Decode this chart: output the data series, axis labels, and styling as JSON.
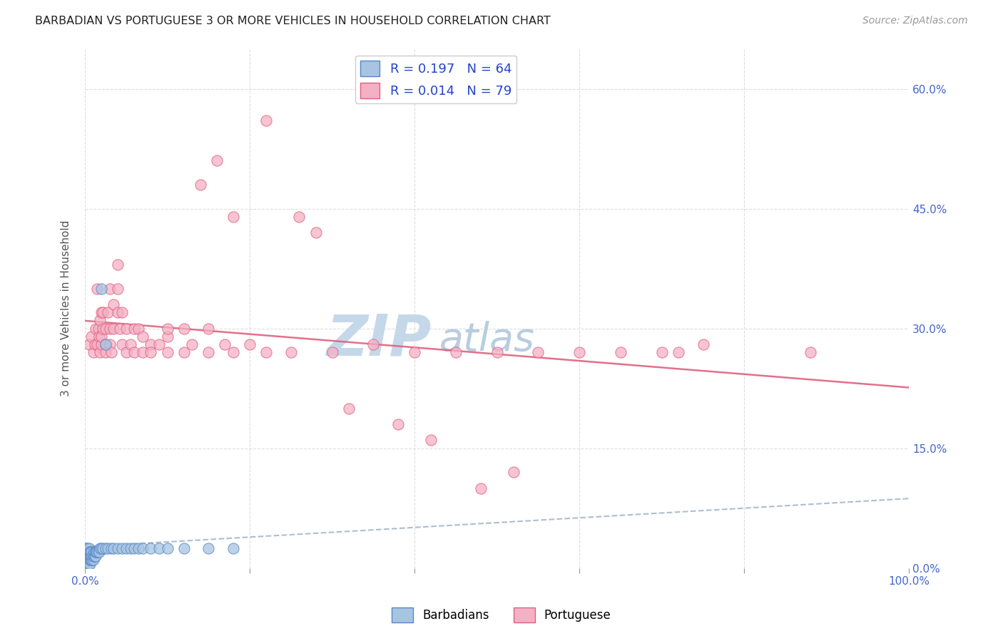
{
  "title": "BARBADIAN VS PORTUGUESE 3 OR MORE VEHICLES IN HOUSEHOLD CORRELATION CHART",
  "source": "Source: ZipAtlas.com",
  "ylabel_label": "3 or more Vehicles in Household",
  "xlim": [
    0.0,
    1.0
  ],
  "ylim": [
    0.0,
    0.65
  ],
  "barbadian_color": "#a8c4e0",
  "barbadian_edge_color": "#5588cc",
  "portuguese_color": "#f4b0c4",
  "portuguese_edge_color": "#e06080",
  "trendline_barbadian_color": "#8ab0d0",
  "trendline_portuguese_color": "#e06080",
  "watermark_color": "#cddded",
  "R_barbadian": 0.197,
  "N_barbadian": 64,
  "R_portuguese": 0.014,
  "N_portuguese": 79,
  "tick_color": "#4466cc",
  "grid_color": "#dddddd",
  "barbadian_x": [
    0.001,
    0.001,
    0.002,
    0.002,
    0.002,
    0.003,
    0.003,
    0.003,
    0.003,
    0.004,
    0.004,
    0.004,
    0.004,
    0.005,
    0.005,
    0.005,
    0.005,
    0.005,
    0.006,
    0.006,
    0.006,
    0.006,
    0.007,
    0.007,
    0.007,
    0.008,
    0.008,
    0.008,
    0.009,
    0.009,
    0.01,
    0.01,
    0.01,
    0.011,
    0.012,
    0.012,
    0.013,
    0.013,
    0.014,
    0.015,
    0.016,
    0.017,
    0.018,
    0.02,
    0.022,
    0.025,
    0.028,
    0.032,
    0.035,
    0.04,
    0.045,
    0.05,
    0.055,
    0.06,
    0.065,
    0.07,
    0.08,
    0.09,
    0.1,
    0.12,
    0.15,
    0.18,
    0.02,
    0.025
  ],
  "barbadian_y": [
    0.02,
    0.025,
    0.015,
    0.02,
    0.025,
    0.01,
    0.015,
    0.02,
    0.025,
    0.005,
    0.01,
    0.015,
    0.02,
    0.005,
    0.01,
    0.015,
    0.02,
    0.025,
    0.005,
    0.01,
    0.015,
    0.02,
    0.01,
    0.015,
    0.02,
    0.01,
    0.015,
    0.02,
    0.01,
    0.015,
    0.01,
    0.015,
    0.02,
    0.015,
    0.015,
    0.02,
    0.015,
    0.02,
    0.02,
    0.02,
    0.02,
    0.02,
    0.025,
    0.025,
    0.025,
    0.025,
    0.025,
    0.025,
    0.025,
    0.025,
    0.025,
    0.025,
    0.025,
    0.025,
    0.025,
    0.025,
    0.025,
    0.025,
    0.025,
    0.025,
    0.025,
    0.025,
    0.35,
    0.28
  ],
  "portuguese_x": [
    0.005,
    0.008,
    0.01,
    0.012,
    0.013,
    0.015,
    0.015,
    0.016,
    0.017,
    0.018,
    0.018,
    0.02,
    0.02,
    0.02,
    0.022,
    0.022,
    0.025,
    0.025,
    0.025,
    0.028,
    0.03,
    0.03,
    0.03,
    0.032,
    0.035,
    0.035,
    0.04,
    0.04,
    0.04,
    0.042,
    0.045,
    0.045,
    0.05,
    0.05,
    0.055,
    0.06,
    0.06,
    0.065,
    0.07,
    0.07,
    0.08,
    0.08,
    0.09,
    0.1,
    0.1,
    0.1,
    0.12,
    0.12,
    0.13,
    0.15,
    0.15,
    0.17,
    0.18,
    0.2,
    0.22,
    0.25,
    0.3,
    0.35,
    0.4,
    0.45,
    0.5,
    0.55,
    0.6,
    0.65,
    0.7,
    0.72,
    0.75,
    0.88,
    0.14,
    0.16,
    0.18,
    0.22,
    0.26,
    0.28,
    0.32,
    0.48,
    0.38,
    0.42,
    0.52
  ],
  "portuguese_y": [
    0.28,
    0.29,
    0.27,
    0.28,
    0.3,
    0.28,
    0.35,
    0.3,
    0.29,
    0.31,
    0.27,
    0.28,
    0.29,
    0.32,
    0.3,
    0.32,
    0.28,
    0.3,
    0.27,
    0.32,
    0.35,
    0.28,
    0.3,
    0.27,
    0.33,
    0.3,
    0.35,
    0.32,
    0.38,
    0.3,
    0.28,
    0.32,
    0.27,
    0.3,
    0.28,
    0.27,
    0.3,
    0.3,
    0.27,
    0.29,
    0.28,
    0.27,
    0.28,
    0.27,
    0.29,
    0.3,
    0.27,
    0.3,
    0.28,
    0.27,
    0.3,
    0.28,
    0.27,
    0.28,
    0.27,
    0.27,
    0.27,
    0.28,
    0.27,
    0.27,
    0.27,
    0.27,
    0.27,
    0.27,
    0.27,
    0.27,
    0.28,
    0.27,
    0.48,
    0.51,
    0.44,
    0.56,
    0.44,
    0.42,
    0.2,
    0.1,
    0.18,
    0.16,
    0.12
  ]
}
